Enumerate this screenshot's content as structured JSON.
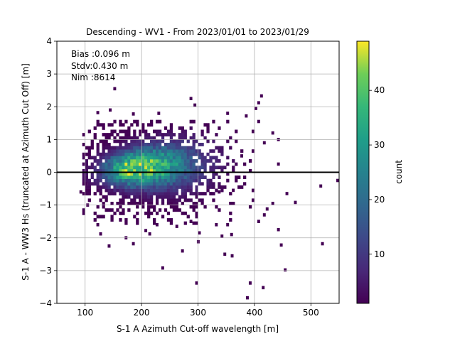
{
  "chart_data": {
    "type": "heatmap",
    "title": "Descending - WV1 - From 2023/01/01 to 2023/01/29",
    "xlabel": "S-1 A Azimuth Cut-off wavelength [m]",
    "ylabel": "S-1 A - WW3 Hs (truncated at Azimuth Cut Off) [m]",
    "xlim": [
      50,
      550
    ],
    "ylim": [
      -4,
      4
    ],
    "xticks": [
      100,
      200,
      300,
      400,
      500
    ],
    "yticks": [
      -4,
      -3,
      -2,
      -1,
      0,
      1,
      2,
      3,
      4
    ],
    "grid": true,
    "reference_line_y": 0,
    "annotation": {
      "bias": "Bias :0.096 m",
      "stdv": "Stdv:0.430 m",
      "nim": "Nim :8614"
    },
    "colorbar": {
      "label": "count",
      "colormap": "viridis",
      "range": [
        1,
        49
      ],
      "ticks": [
        10,
        20,
        30,
        40
      ]
    },
    "density_core": {
      "peak_x": 185,
      "peak_y": 0.08,
      "peak_count": 47,
      "spread_x": 45,
      "spread_y": 0.35
    },
    "outliers": [
      [
        150,
        2.55
      ],
      [
        142,
        1.9
      ],
      [
        120,
        1.82
      ],
      [
        183,
        1.78
      ],
      [
        228,
        1.8
      ],
      [
        285,
        2.25
      ],
      [
        292,
        2.05
      ],
      [
        410,
        2.33
      ],
      [
        405,
        2.12
      ],
      [
        400,
        1.95
      ],
      [
        350,
        1.8
      ],
      [
        383,
        1.72
      ],
      [
        405,
        1.55
      ],
      [
        430,
        1.2
      ],
      [
        440,
        1.0
      ],
      [
        415,
        0.9
      ],
      [
        375,
        0.5
      ],
      [
        440,
        0.25
      ],
      [
        545,
        -0.25
      ],
      [
        515,
        -0.42
      ],
      [
        455,
        -0.65
      ],
      [
        470,
        -0.92
      ],
      [
        420,
        -1.12
      ],
      [
        415,
        -1.3
      ],
      [
        430,
        -0.95
      ],
      [
        405,
        -1.5
      ],
      [
        440,
        -1.75
      ],
      [
        330,
        -1.6
      ],
      [
        350,
        -1.6
      ],
      [
        300,
        -1.85
      ],
      [
        340,
        -1.95
      ],
      [
        357,
        -1.9
      ],
      [
        298,
        -2.12
      ],
      [
        270,
        -2.4
      ],
      [
        345,
        -2.5
      ],
      [
        358,
        -2.55
      ],
      [
        452,
        -2.98
      ],
      [
        445,
        -2.22
      ],
      [
        518,
        -2.18
      ],
      [
        235,
        -2.92
      ],
      [
        295,
        -3.38
      ],
      [
        390,
        -3.38
      ],
      [
        413,
        -3.52
      ],
      [
        385,
        -3.83
      ],
      [
        140,
        -2.25
      ],
      [
        125,
        -1.88
      ],
      [
        170,
        -2.0
      ],
      [
        183,
        -2.18
      ],
      [
        205,
        -1.78
      ],
      [
        212,
        -1.88
      ],
      [
        225,
        -1.6
      ],
      [
        260,
        -1.65
      ],
      [
        120,
        -1.6
      ],
      [
        102,
        -1.0
      ],
      [
        90,
        -0.6
      ],
      [
        100,
        -0.35
      ],
      [
        320,
        -0.65
      ],
      [
        335,
        -0.6
      ],
      [
        360,
        -0.55
      ],
      [
        285,
        -1.5
      ]
    ]
  }
}
